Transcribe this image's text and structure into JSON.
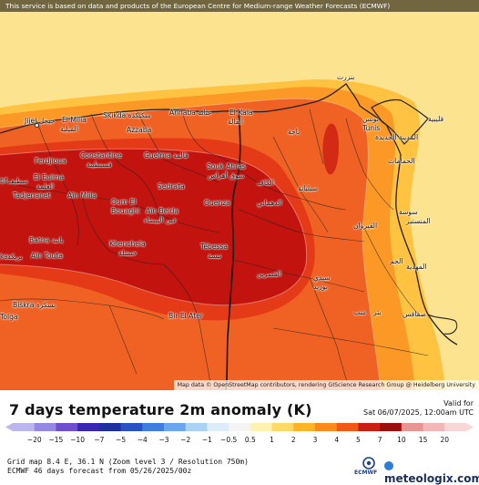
{
  "banner": "This service is based on data and products of the European Centre for Medium-range Weather Forecasts (ECMWF)",
  "attribution": "Map data © OpenStreetMap contributors, rendering GIScience Research Group @ Heidelberg University",
  "title": "7 days temperature 2m anomaly (K)",
  "valid_label": "Valid for",
  "valid_date": "Sat 06/07/2025, 12:00am UTC",
  "grid_info": "Grid map 8.4 E, 36.1 N (Zoom level 3 / Resolution 750m)",
  "forecast_info": "ECMWF 46 days forecast from 05/26/2025/00z",
  "ecmwf_logo_text": "ECMWF",
  "brand": "meteologix.com",
  "legend": {
    "values": [
      "−20",
      "−15",
      "−10",
      "−7",
      "−5",
      "−4",
      "−3",
      "−2",
      "−1",
      "−0.5",
      "0.5",
      "1",
      "2",
      "3",
      "4",
      "5",
      "7",
      "10",
      "15",
      "20"
    ],
    "colors": [
      "#bcb6ee",
      "#9488e2",
      "#6f4fd0",
      "#3a26b5",
      "#1f2fa0",
      "#2a50c8",
      "#3f7ee0",
      "#6aa6ef",
      "#a9d2f5",
      "#dcecf8",
      "#f4f4f4",
      "#fff1b0",
      "#ffd966",
      "#ffb327",
      "#ff8a1c",
      "#f25716",
      "#cc1d12",
      "#9c0e0e",
      "#e89494",
      "#f2b8b8",
      "#f8d7d7"
    ]
  },
  "cities": [
    {
      "name": "Jijel جيجل"
    },
    {
      "name": "El Milia"
    },
    {
      "name": "الميلية"
    },
    {
      "name": "Skikda سكيكدة"
    },
    {
      "name": "Annaba عنابة"
    },
    {
      "name": "El Kala"
    },
    {
      "name": "القالة"
    },
    {
      "name": "Azzaba"
    },
    {
      "name": "Constantine"
    },
    {
      "name": "قسنطينة"
    },
    {
      "name": "Guelma قالمة"
    },
    {
      "name": "Ferdjioua"
    },
    {
      "name": "El Eulma"
    },
    {
      "name": "العلمة"
    },
    {
      "name": "Tadjenanet"
    },
    {
      "name": "Aïn Mlila"
    },
    {
      "name": "Sedrata"
    },
    {
      "name": "Souk Ahras"
    },
    {
      "name": "سوق أهراس"
    },
    {
      "name": "Oum El"
    },
    {
      "name": "Bouaghi"
    },
    {
      "name": "Aïn Beida"
    },
    {
      "name": "عين البيضاء"
    },
    {
      "name": "Ouenza"
    },
    {
      "name": "Batna باتنة"
    },
    {
      "name": "Khenchela"
    },
    {
      "name": "خنشلة"
    },
    {
      "name": "Tébessa"
    },
    {
      "name": "تبسة"
    },
    {
      "name": "Aïn Touta"
    },
    {
      "name": "Biskra بسكرة"
    },
    {
      "name": "Tolga"
    },
    {
      "name": "Bir El Ater"
    },
    {
      "name": "بنزرت"
    },
    {
      "name": "تونس"
    },
    {
      "name": "Tunis"
    },
    {
      "name": "المدينة الجديدة"
    },
    {
      "name": "قليبية"
    },
    {
      "name": "الحمامات"
    },
    {
      "name": "باجة"
    },
    {
      "name": "الكاف"
    },
    {
      "name": "سيليانة"
    },
    {
      "name": "سوسة"
    },
    {
      "name": "المنستير"
    },
    {
      "name": "المهدية"
    },
    {
      "name": "القيروان"
    },
    {
      "name": "الدهماني"
    },
    {
      "name": "القصرين"
    },
    {
      "name": "سيدي"
    },
    {
      "name": "بوزيد"
    },
    {
      "name": "الجم"
    },
    {
      "name": "صفاقس"
    },
    {
      "name": "بئر"
    },
    {
      "name": "شب"
    },
    {
      "name": "tif"
    },
    {
      "name": "سطيف"
    },
    {
      "name": "ka"
    },
    {
      "name": "بريكة"
    }
  ]
}
